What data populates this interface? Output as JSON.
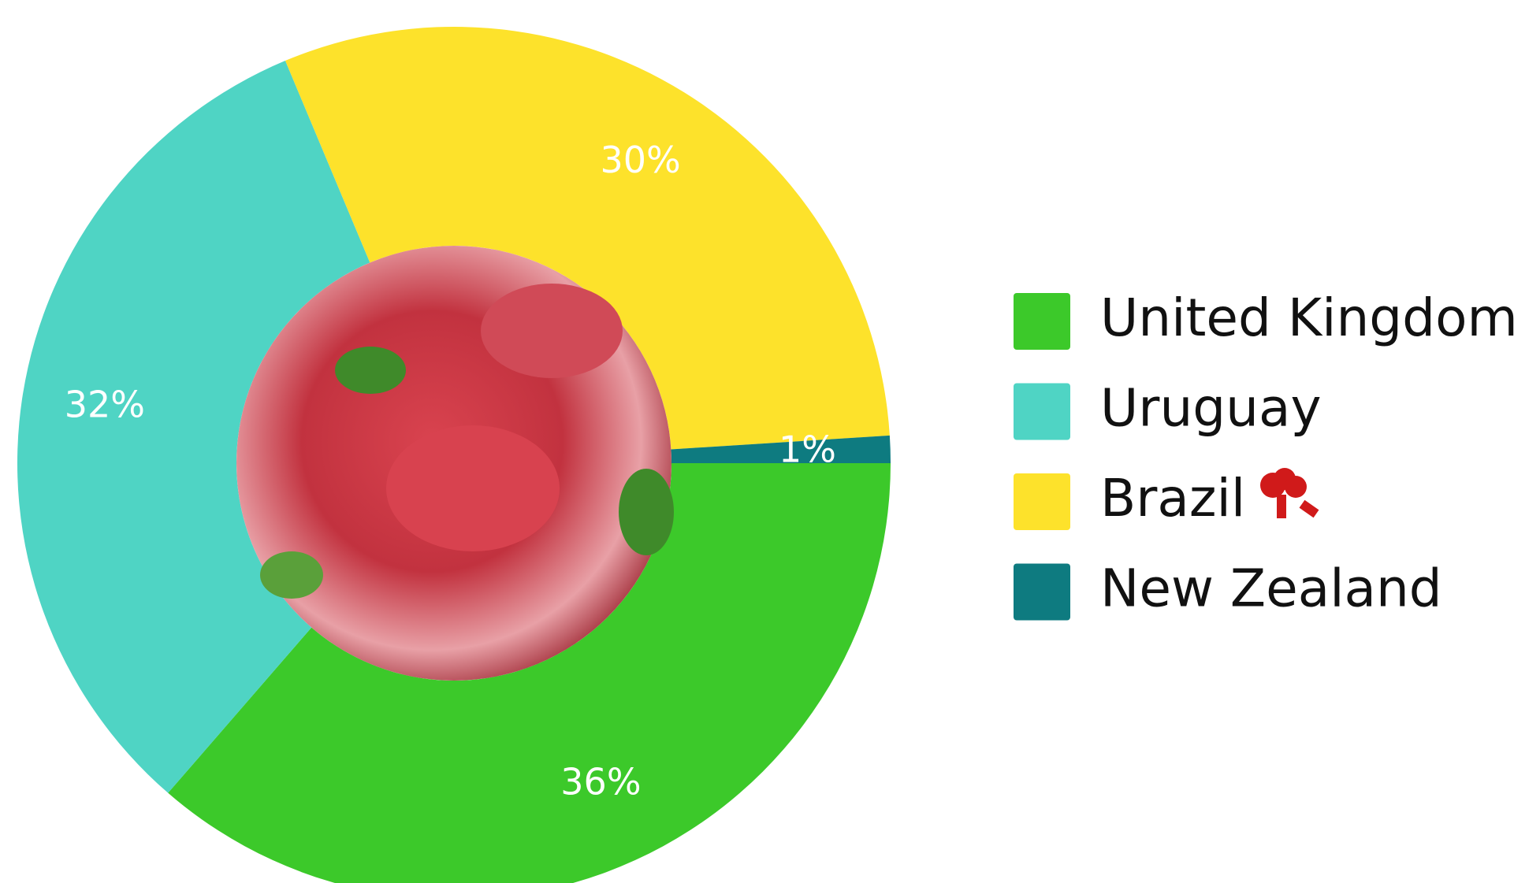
{
  "chart_data": {
    "type": "donut",
    "categories": [
      "United Kingdom",
      "Uruguay",
      "Brazil",
      "New Zealand"
    ],
    "series": [
      {
        "values": [
          36,
          32,
          30,
          1
        ],
        "value_labels": [
          "36%",
          "32%",
          "30%",
          "1%"
        ],
        "colors": [
          "#3cc92a",
          "#4fd4c4",
          "#fde22b",
          "#0e7b80"
        ]
      }
    ],
    "legend": "right"
  }
}
